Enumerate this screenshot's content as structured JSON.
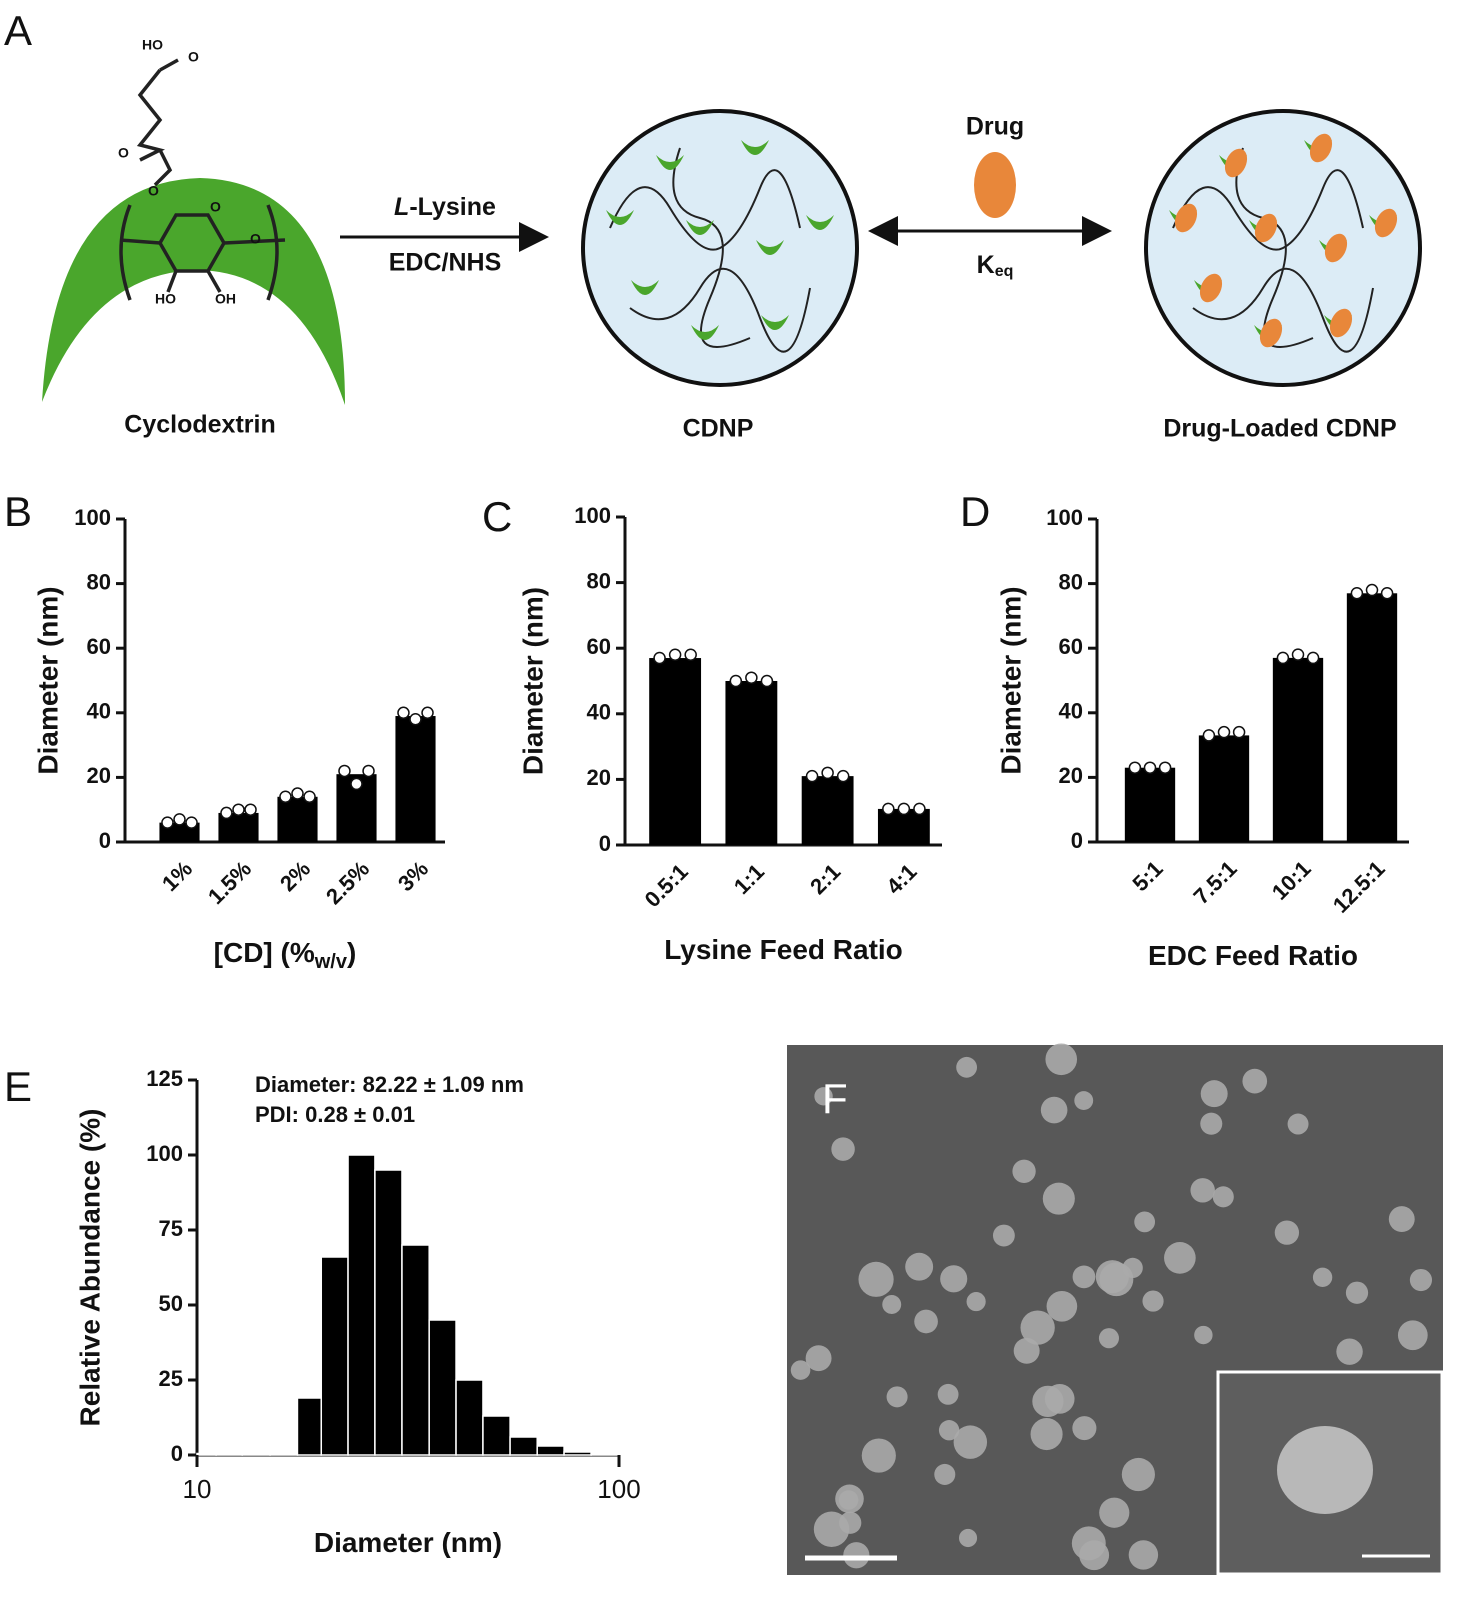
{
  "diagram": {
    "label": "A",
    "cyclodextrin": "Cyclodextrin",
    "reagent_italic": "L",
    "reagent_rest": "-Lysine",
    "reagent_bottom": "EDC/NHS",
    "cdnp": "CDNP",
    "drug": "Drug",
    "keq": "K",
    "keq_sub": "eq",
    "loaded": "Drug-Loaded CDNP",
    "molecule_labels": [
      "HO",
      "O",
      "O",
      "O",
      "O",
      "O",
      "HO",
      "OH"
    ]
  },
  "image_panel": {
    "label": "F"
  },
  "chart_data": [
    {
      "type": "bar",
      "label": "B",
      "ylabel": "Diameter (nm)",
      "xlabel": "[CD] (%",
      "xlabel_sub": "w/v",
      "xlabel_end": ")",
      "categories": [
        "1%",
        "1.5%",
        "2%",
        "2.5%",
        "3%"
      ],
      "values": [
        6,
        9,
        14,
        21,
        39
      ],
      "points": [
        [
          6,
          7,
          6
        ],
        [
          9,
          10,
          10
        ],
        [
          14,
          15,
          14
        ],
        [
          22,
          18,
          22
        ],
        [
          40,
          38,
          40
        ]
      ],
      "color": "#000000",
      "ylim": [
        0,
        100
      ],
      "yticks": [
        0,
        20,
        40,
        60,
        80,
        100
      ]
    },
    {
      "type": "bar",
      "label": "C",
      "ylabel": "Diameter (nm)",
      "xlabel": "Lysine Feed Ratio",
      "categories": [
        "0.5:1",
        "1:1",
        "2:1",
        "4:1"
      ],
      "values": [
        57,
        50,
        21,
        11
      ],
      "points": [
        [
          57,
          58,
          58
        ],
        [
          50,
          51,
          50
        ],
        [
          21,
          22,
          21
        ],
        [
          11,
          11,
          11
        ]
      ],
      "color": "#000000",
      "ylim": [
        0,
        100
      ],
      "yticks": [
        0,
        20,
        40,
        60,
        80,
        100
      ]
    },
    {
      "type": "bar",
      "label": "D",
      "ylabel": "Diameter (nm)",
      "xlabel": "EDC Feed Ratio",
      "categories": [
        "5:1",
        "7.5:1",
        "10:1",
        "12.5:1"
      ],
      "values": [
        23,
        33,
        57,
        77
      ],
      "points": [
        [
          23,
          23,
          23
        ],
        [
          33,
          34,
          34
        ],
        [
          57,
          58,
          57
        ],
        [
          77,
          78,
          77
        ]
      ],
      "color": "#000000",
      "ylim": [
        0,
        100
      ],
      "yticks": [
        0,
        20,
        40,
        60,
        80,
        100
      ]
    },
    {
      "type": "histogram",
      "label": "E",
      "ylabel": "Relative Abundance (%)",
      "xlabel": "Diameter (nm)",
      "annotations": [
        "Diameter: 82.22 ± 1.09 nm",
        "PDI: 0.28 ± 0.01"
      ],
      "bins": [
        10,
        11.1,
        12.8,
        14.9,
        17.3,
        19.7,
        22.8,
        26.4,
        30.6,
        35.5,
        41.1,
        47.6,
        55.2,
        64.0,
        74.1,
        85.9,
        100
      ],
      "values": [
        0.5,
        0.5,
        0.5,
        0.5,
        19,
        66,
        100,
        95,
        70,
        45,
        25,
        13,
        6,
        3,
        1,
        0.5
      ],
      "color": "#000000",
      "log_x": true,
      "xlim": [
        10,
        100
      ],
      "xticks": [
        10,
        100
      ],
      "ylim": [
        0,
        125
      ],
      "yticks": [
        0,
        25,
        50,
        75,
        100,
        125
      ]
    }
  ]
}
